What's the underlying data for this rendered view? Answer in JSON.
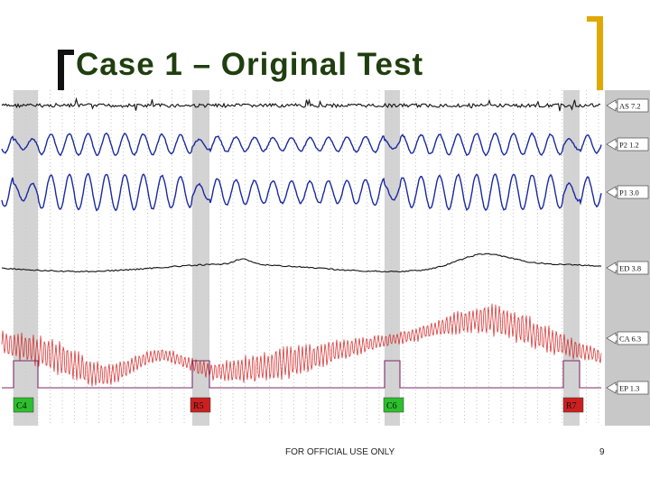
{
  "slide": {
    "title": "Case 1 – Original Test",
    "footer": "FOR OFFICIAL USE ONLY",
    "page_number": "9"
  },
  "colors": {
    "title": "#1f3f0e",
    "bracket_left": "#111111",
    "bracket_right": "#e0a800",
    "pneumo": "#1a2aa0",
    "eda": "#111111",
    "cardio": "#d42020",
    "marker": "#7a2a6a",
    "shade": "#c8c8c8",
    "label_green": "#2dbf2d",
    "label_red": "#cc2020",
    "panel": "#c8c8c8"
  },
  "chart_data": {
    "type": "line",
    "title": "",
    "xlabel": "",
    "ylabel": "",
    "channels": [
      {
        "name": "AS 7.2",
        "tag": "AS",
        "value": "7.2",
        "kind": "noise",
        "color": "#111111"
      },
      {
        "name": "P2 1.2",
        "tag": "P2",
        "value": "1.2",
        "kind": "pneumo",
        "color": "#1a2aa0"
      },
      {
        "name": "P1 3.0",
        "tag": "P1",
        "value": "3.0",
        "kind": "pneumo",
        "color": "#1a2aa0"
      },
      {
        "name": "ED 3.8",
        "tag": "ED",
        "value": "3.8",
        "kind": "eda",
        "color": "#111111"
      },
      {
        "name": "CA 6.3",
        "tag": "CA",
        "value": "6.3",
        "kind": "cardio",
        "color": "#d42020"
      },
      {
        "name": "EP 1.3",
        "tag": "EP",
        "value": "1.3",
        "kind": "event",
        "color": "#7a2a6a"
      }
    ],
    "question_markers": [
      {
        "label": "C4",
        "kind": "control"
      },
      {
        "label": "R5",
        "kind": "relevant"
      },
      {
        "label": "C6",
        "kind": "control"
      },
      {
        "label": "R7",
        "kind": "relevant"
      }
    ]
  }
}
